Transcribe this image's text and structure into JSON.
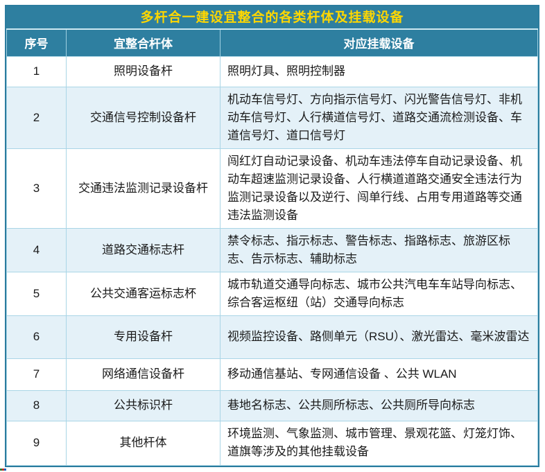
{
  "title": "多杆合一建设宜整合的各类杆体及挂载设备",
  "columns": {
    "no": "序号",
    "pole": "宜整合杆体",
    "devices": "对应挂载设备"
  },
  "rows": [
    {
      "no": "1",
      "pole": "照明设备杆",
      "devices": "照明灯具、照明控制器"
    },
    {
      "no": "2",
      "pole": "交通信号控制设备杆",
      "devices": "机动车信号灯、方向指示信号灯、闪光警告信号灯、非机动车信号灯、人行横道信号灯、道路交通流检测设备、车道信号灯、道口信号灯"
    },
    {
      "no": "3",
      "pole": "交通违法监测记录设备杆",
      "devices": "闯红灯自动记录设备、机动车违法停车自动记录设备、机动车超速监测记录设备、人行横道道路交通安全违法行为监测记录设备以及逆行、闯单行线、占用专用道路等交通违法监测设备"
    },
    {
      "no": "4",
      "pole": "道路交通标志杆",
      "devices": "禁令标志、指示标志、警告标志、指路标志、旅游区标志、告示标志、辅助标志"
    },
    {
      "no": "5",
      "pole": "公共交通客运标志杯",
      "devices": "城市轨道交通导向标志、城市公共汽电车车站导向标志、综合客运枢纽（站）交通导向标志"
    },
    {
      "no": "6",
      "pole": "专用设备杆",
      "devices": "视频监控设备、路侧单元（RSU）、激光雷达、毫米波雷达"
    },
    {
      "no": "7",
      "pole": "网络通信设备杆",
      "devices": "移动通信基站、专网通信设备 、公共 WLAN"
    },
    {
      "no": "8",
      "pole": "公共标识杆",
      "devices": "巷地名标志、公共厕所标志、公共厕所导向标志"
    },
    {
      "no": "9",
      "pole": "其他杆体",
      "devices": "环境监测、气象监测、城市管理、景观花篮、灯笼灯饰、道旗等涉及的其他挂载设备"
    }
  ],
  "colors": {
    "header_bg": "#2e7fa0",
    "title_text": "#ffd700",
    "header_text": "#ffffff",
    "alt_row_bg": "#e4f1f8",
    "cell_border": "#a9d5e6",
    "body_text": "#1a1a1a"
  }
}
